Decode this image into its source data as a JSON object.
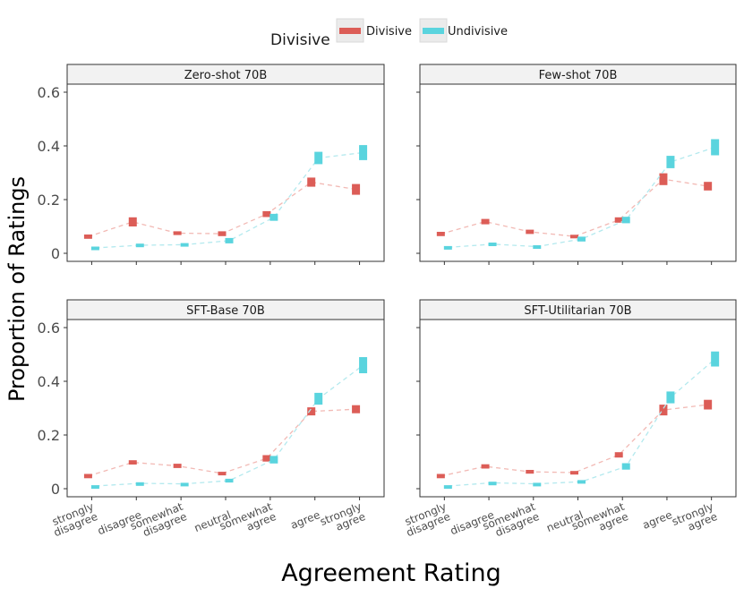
{
  "legend": {
    "title": "Divisive",
    "entries": [
      {
        "label": "Divisive",
        "color": "#dc5d57"
      },
      {
        "label": "Undivisive",
        "color": "#5ad4de"
      }
    ]
  },
  "axes": {
    "xlabel": "Agreement Rating",
    "ylabel": "Proportion of Ratings",
    "yticks": [
      "0",
      "0.2",
      "0.4",
      "0.6"
    ],
    "xticks": [
      [
        "strongly",
        "disagree"
      ],
      [
        "disagree"
      ],
      [
        "somewhat",
        "disagree"
      ],
      [
        "neutral"
      ],
      [
        "somewhat",
        "agree"
      ],
      [
        "agree"
      ],
      [
        "strongly",
        "agree"
      ]
    ]
  },
  "chart_data": [
    {
      "type": "line",
      "title": "Zero-shot 70B",
      "categories": [
        "strongly disagree",
        "disagree",
        "somewhat disagree",
        "neutral",
        "somewhat agree",
        "agree",
        "strongly agree"
      ],
      "ylim": [
        -0.03,
        0.63
      ],
      "series": [
        {
          "name": "Divisive",
          "values": [
            0.062,
            0.117,
            0.075,
            0.073,
            0.146,
            0.265,
            0.238
          ],
          "err": [
            0.008,
            0.017,
            0.007,
            0.009,
            0.011,
            0.017,
            0.02
          ]
        },
        {
          "name": "Undivisive",
          "values": [
            0.02,
            0.03,
            0.032,
            0.047,
            0.134,
            0.355,
            0.375
          ],
          "err": [
            0.005,
            0.006,
            0.006,
            0.01,
            0.013,
            0.023,
            0.028
          ]
        }
      ]
    },
    {
      "type": "line",
      "title": "Few-shot 70B",
      "categories": [
        "strongly disagree",
        "disagree",
        "somewhat disagree",
        "neutral",
        "somewhat agree",
        "agree",
        "strongly agree"
      ],
      "ylim": [
        -0.03,
        0.63
      ],
      "series": [
        {
          "name": "Divisive",
          "values": [
            0.072,
            0.118,
            0.08,
            0.063,
            0.124,
            0.276,
            0.25
          ],
          "err": [
            0.008,
            0.01,
            0.008,
            0.006,
            0.01,
            0.022,
            0.016
          ]
        },
        {
          "name": "Undivisive",
          "values": [
            0.022,
            0.034,
            0.025,
            0.053,
            0.124,
            0.34,
            0.395
          ],
          "err": [
            0.005,
            0.006,
            0.005,
            0.009,
            0.012,
            0.023,
            0.03
          ]
        }
      ]
    },
    {
      "type": "line",
      "title": "SFT-Base 70B",
      "categories": [
        "strongly disagree",
        "disagree",
        "somewhat disagree",
        "neutral",
        "somewhat agree",
        "agree",
        "strongly agree"
      ],
      "ylim": [
        -0.03,
        0.63
      ],
      "series": [
        {
          "name": "Divisive",
          "values": [
            0.047,
            0.098,
            0.085,
            0.057,
            0.113,
            0.288,
            0.296
          ],
          "err": [
            0.008,
            0.008,
            0.008,
            0.006,
            0.012,
            0.015,
            0.015
          ]
        },
        {
          "name": "Undivisive",
          "values": [
            0.01,
            0.02,
            0.018,
            0.03,
            0.108,
            0.335,
            0.46
          ],
          "err": [
            0.003,
            0.004,
            0.004,
            0.007,
            0.014,
            0.022,
            0.03
          ]
        }
      ]
    },
    {
      "type": "line",
      "title": "SFT-Utilitarian 70B",
      "categories": [
        "strongly disagree",
        "disagree",
        "somewhat disagree",
        "neutral",
        "somewhat agree",
        "agree",
        "strongly agree"
      ],
      "ylim": [
        -0.03,
        0.63
      ],
      "series": [
        {
          "name": "Divisive",
          "values": [
            0.047,
            0.083,
            0.063,
            0.06,
            0.126,
            0.293,
            0.313
          ],
          "err": [
            0.008,
            0.008,
            0.007,
            0.006,
            0.01,
            0.02,
            0.018
          ]
        },
        {
          "name": "Undivisive",
          "values": [
            0.01,
            0.022,
            0.018,
            0.026,
            0.083,
            0.34,
            0.483
          ],
          "err": [
            0.003,
            0.004,
            0.004,
            0.006,
            0.012,
            0.022,
            0.028
          ]
        }
      ]
    }
  ]
}
